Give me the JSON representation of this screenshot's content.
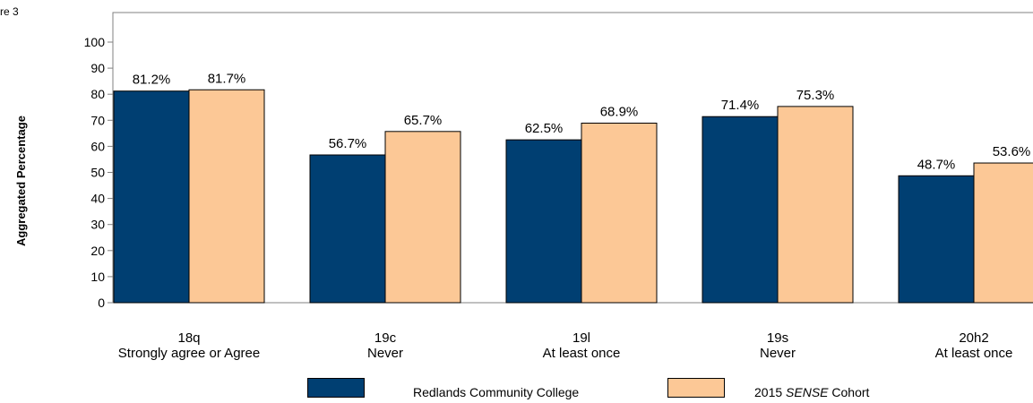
{
  "figure_label": "re 3",
  "chart_data": {
    "type": "bar",
    "ylabel": "Aggregated Percentage",
    "ylim": [
      0,
      100
    ],
    "yticks": [
      0,
      10,
      20,
      30,
      40,
      50,
      60,
      70,
      80,
      90,
      100
    ],
    "categories": [
      [
        "18q",
        "Strongly agree or Agree"
      ],
      [
        "19c",
        "Never"
      ],
      [
        "19l",
        "At least once"
      ],
      [
        "19s",
        "Never"
      ],
      [
        "20h2",
        "At least once"
      ]
    ],
    "series": [
      {
        "name": "Redlands Community College",
        "color": "#003f72",
        "values": [
          81.2,
          56.7,
          62.5,
          71.4,
          48.7
        ],
        "labels": [
          "81.2%",
          "56.7%",
          "62.5%",
          "71.4%",
          "48.7%"
        ]
      },
      {
        "name": "2015 SENSE Cohort",
        "color": "#fcc896",
        "values": [
          81.7,
          65.7,
          68.9,
          75.3,
          53.6
        ],
        "labels": [
          "81.7%",
          "65.7%",
          "68.9%",
          "75.3%",
          "53.6%"
        ]
      }
    ],
    "legend_position": "bottom",
    "grid": false
  },
  "legend": {
    "items": [
      {
        "prefix": "Redlands Community College",
        "emph": "",
        "suffix": ""
      },
      {
        "prefix": "2015 ",
        "emph": "SENSE",
        "suffix": " Cohort"
      }
    ]
  }
}
